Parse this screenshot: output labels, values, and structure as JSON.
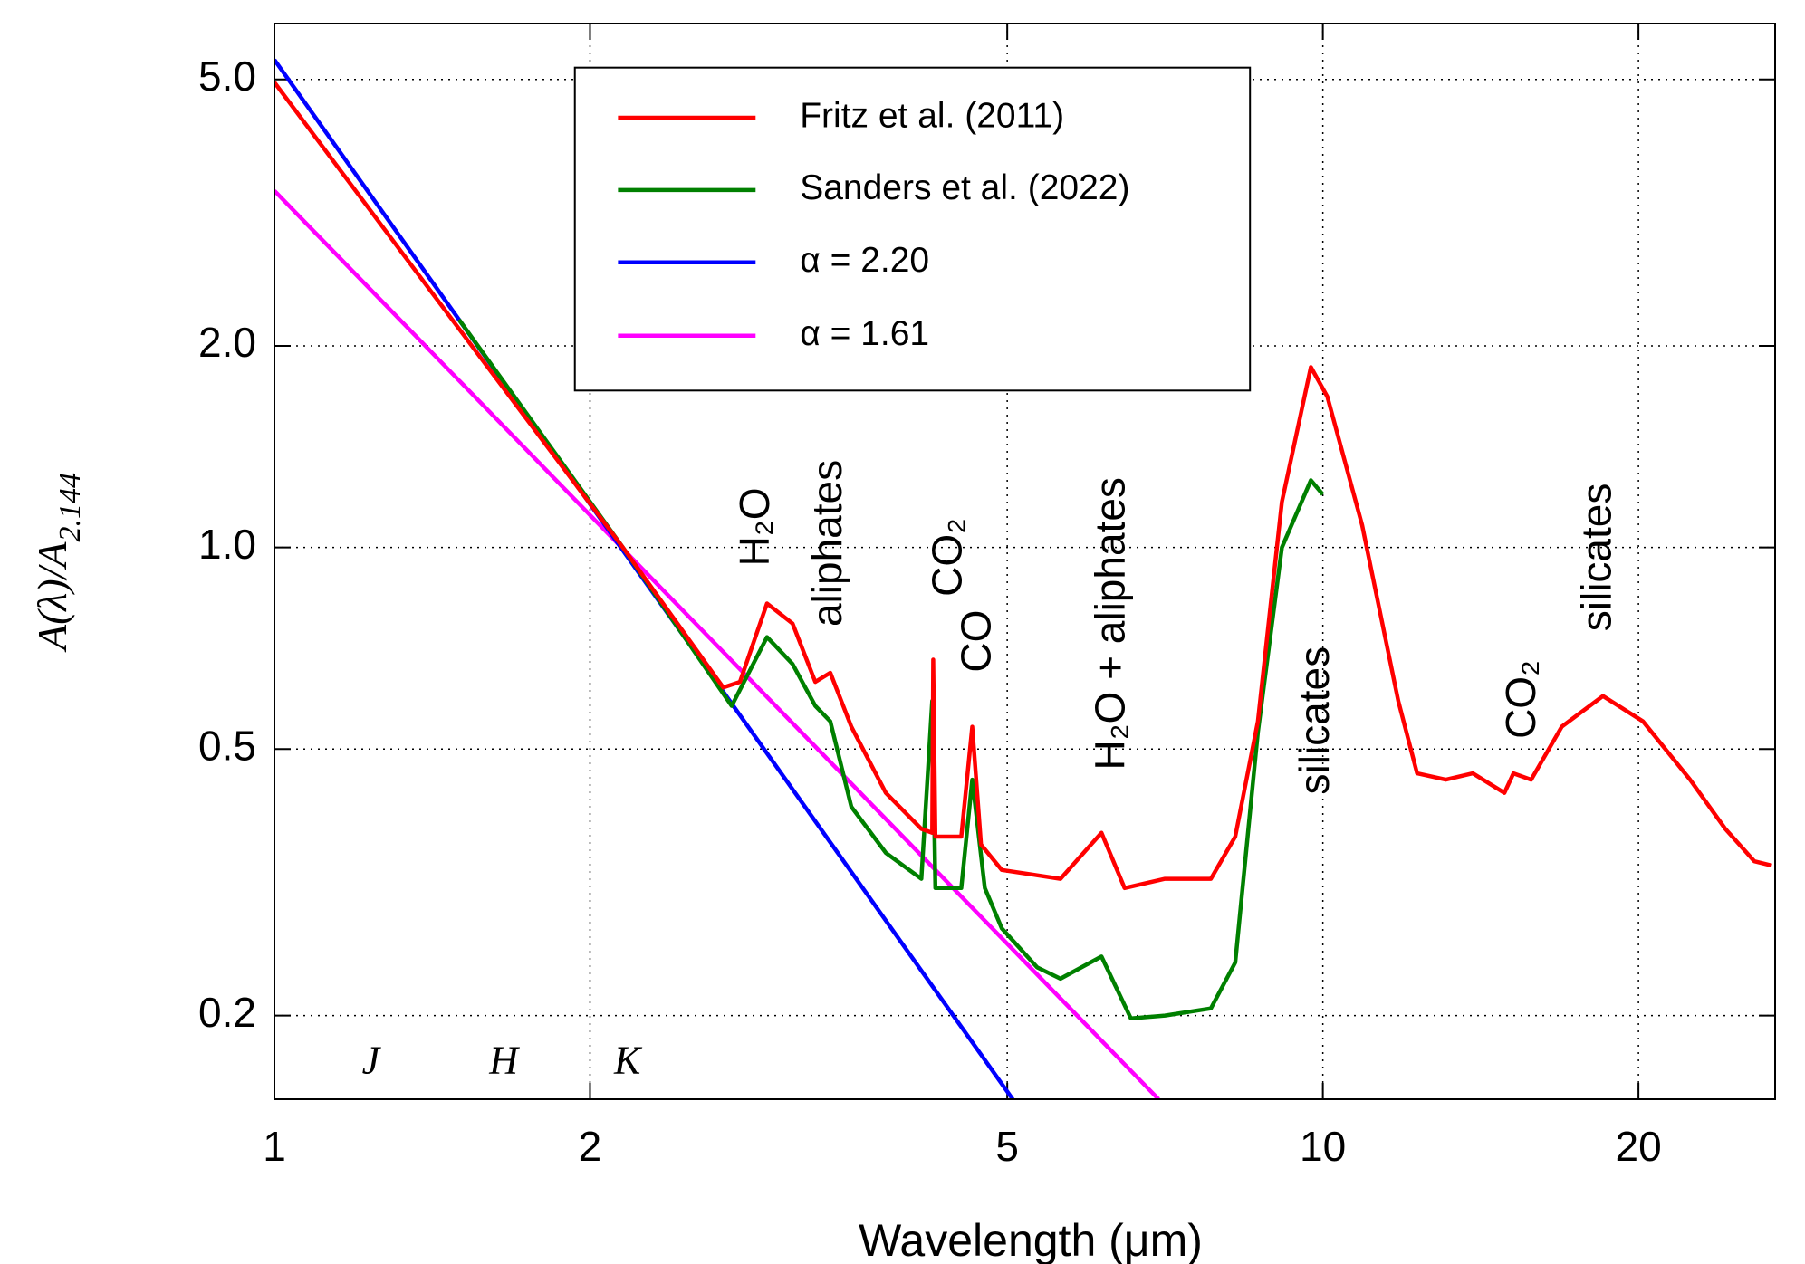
{
  "chart_data": {
    "type": "line",
    "x_label": "Wavelength (μm)",
    "y_label": "A(λ)/A",
    "y_label_sub": "2.144",
    "xscale": "log",
    "yscale": "log",
    "grid": true,
    "legend": "upper center",
    "xlim": [
      1,
      27
    ],
    "ylim": [
      0.15,
      6.06
    ],
    "xticks": [
      1,
      2,
      5,
      10,
      20
    ],
    "yticks": [
      0.2,
      0.5,
      {
        "value": 1,
        "label": "1.0"
      },
      {
        "value": 2,
        "label": "2.0"
      },
      {
        "value": 5,
        "label": "5.0"
      }
    ],
    "series": [
      {
        "name": "Fritz et al. (2011)",
        "color": "#ff0000",
        "x": [
          1,
          2.15,
          2.68,
          2.78,
          2.95,
          3.12,
          3.28,
          3.39,
          3.55,
          3.83,
          4.14,
          4.24,
          4.25,
          4.27,
          4.52,
          4.63,
          4.72,
          4.94,
          5.62,
          6.15,
          6.47,
          7.07,
          7.82,
          8.25,
          8.67,
          9.14,
          9.74,
          10.1,
          10.9,
          11.8,
          12.3,
          13.1,
          13.9,
          14.9,
          15.2,
          15.8,
          16.9,
          18.5,
          20.2,
          22.4,
          24.2,
          25.8,
          26.8
        ],
        "values": [
          4.95,
          1.0,
          0.618,
          0.63,
          0.825,
          0.77,
          0.63,
          0.65,
          0.54,
          0.43,
          0.38,
          0.375,
          0.68,
          0.37,
          0.37,
          0.54,
          0.36,
          0.33,
          0.32,
          0.375,
          0.31,
          0.32,
          0.32,
          0.37,
          0.55,
          1.17,
          1.86,
          1.68,
          1.08,
          0.59,
          0.46,
          0.45,
          0.46,
          0.43,
          0.46,
          0.45,
          0.54,
          0.6,
          0.55,
          0.45,
          0.38,
          0.34,
          0.335
        ]
      },
      {
        "name": "Sanders et al. (2022)",
        "color": "#008000",
        "x": [
          1.5,
          2.15,
          2.73,
          2.95,
          3.12,
          3.28,
          3.39,
          3.55,
          3.83,
          4.14,
          4.24,
          4.27,
          4.52,
          4.63,
          4.76,
          4.94,
          5.34,
          5.62,
          6.15,
          6.56,
          7.07,
          7.82,
          8.25,
          8.67,
          9.14,
          9.74,
          10.0
        ],
        "values": [
          2.19,
          1.0,
          0.58,
          0.735,
          0.67,
          0.58,
          0.55,
          0.41,
          0.35,
          0.32,
          0.59,
          0.31,
          0.31,
          0.45,
          0.31,
          0.27,
          0.236,
          0.227,
          0.245,
          0.198,
          0.2,
          0.205,
          0.24,
          0.53,
          1.0,
          1.26,
          1.2
        ]
      },
      {
        "name": "α = 2.20",
        "color": "#0000ff",
        "x": [
          1,
          5.06
        ],
        "values": [
          5.35,
          0.15
        ]
      },
      {
        "name": "α = 1.61",
        "color": "#ff00ff",
        "x": [
          1,
          6.97
        ],
        "values": [
          3.41,
          0.15
        ]
      }
    ],
    "annotations": [
      "H₂O",
      "aliphates",
      "CO₂",
      "CO",
      "H₂O + aliphates",
      "silicates",
      "CO₂",
      "silicates"
    ],
    "bands": [
      "J",
      "H",
      "K"
    ]
  }
}
